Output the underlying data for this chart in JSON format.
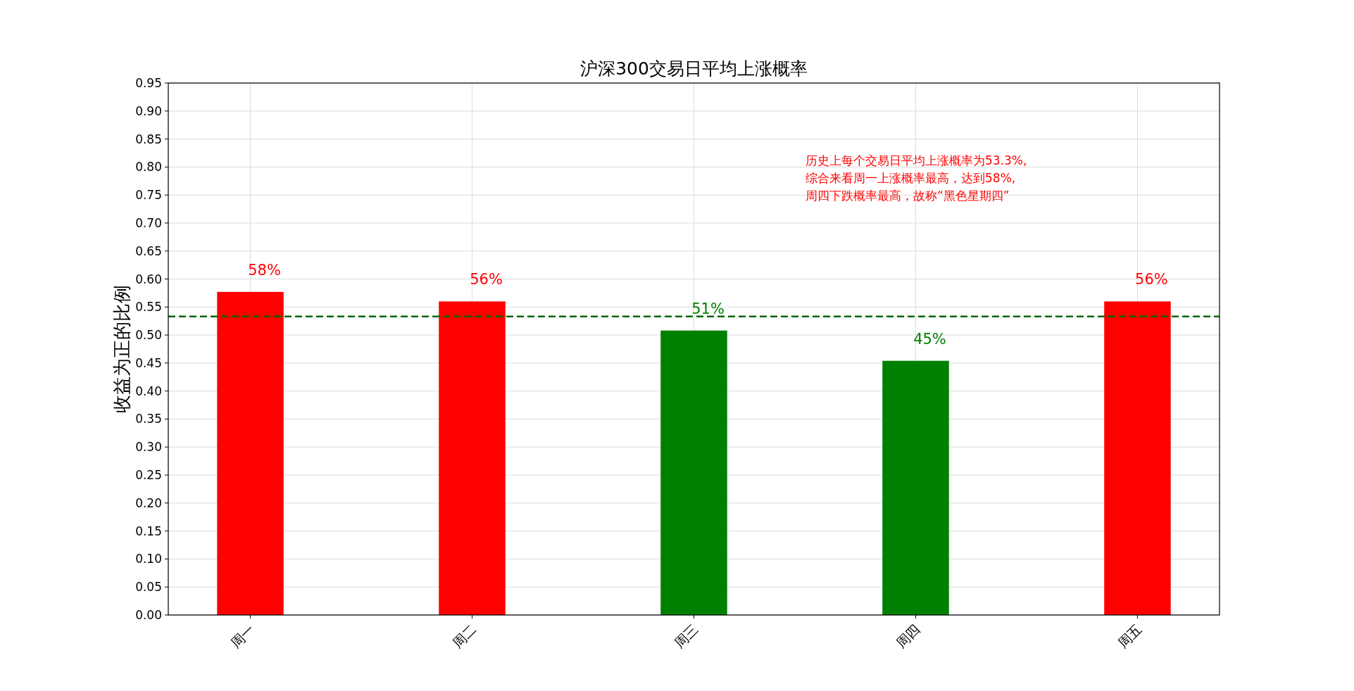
{
  "chart_data": {
    "type": "bar",
    "title": "沪深300交易日平均上涨概率",
    "ylabel": "收益为正的比例",
    "categories": [
      "周一",
      "周二",
      "周三",
      "周四",
      "周五"
    ],
    "values": [
      0.577,
      0.56,
      0.508,
      0.454,
      0.56
    ],
    "colors": [
      "#ff0000",
      "#ff0000",
      "#008000",
      "#008000",
      "#ff0000"
    ],
    "value_labels": [
      "58%",
      "56%",
      "51%",
      "45%",
      "56%"
    ],
    "ylim": [
      0,
      0.95
    ],
    "yticks": [
      {
        "value": 0,
        "label": "0.00"
      },
      {
        "value": 0.05,
        "label": "0.05"
      },
      {
        "value": 0.1,
        "label": "0.10"
      },
      {
        "value": 0.15,
        "label": "0.15"
      },
      {
        "value": 0.2,
        "label": "0.20"
      },
      {
        "value": 0.25,
        "label": "0.25"
      },
      {
        "value": 0.3,
        "label": "0.30"
      },
      {
        "value": 0.35,
        "label": "0.35"
      },
      {
        "value": 0.4,
        "label": "0.40"
      },
      {
        "value": 0.45,
        "label": "0.45"
      },
      {
        "value": 0.5,
        "label": "0.50"
      },
      {
        "value": 0.55,
        "label": "0.55"
      },
      {
        "value": 0.6,
        "label": "0.60"
      },
      {
        "value": 0.65,
        "label": "0.65"
      },
      {
        "value": 0.7,
        "label": "0.70"
      },
      {
        "value": 0.75,
        "label": "0.75"
      },
      {
        "value": 0.8,
        "label": "0.80"
      },
      {
        "value": 0.85,
        "label": "0.85"
      },
      {
        "value": 0.9,
        "label": "0.90"
      },
      {
        "value": 0.95,
        "label": "0.95"
      }
    ],
    "ref_lines": [
      {
        "axis": "y",
        "value": 0.533,
        "color": "#006400",
        "line_style": "dashed"
      }
    ],
    "annotations": [
      "历史上每个交易日平均上涨概率为53.3%,",
      "综合来看周一上涨概率最高，达到58%,",
      "周四下跌概率最高，故称“黑色星期四”"
    ],
    "grid": true
  }
}
